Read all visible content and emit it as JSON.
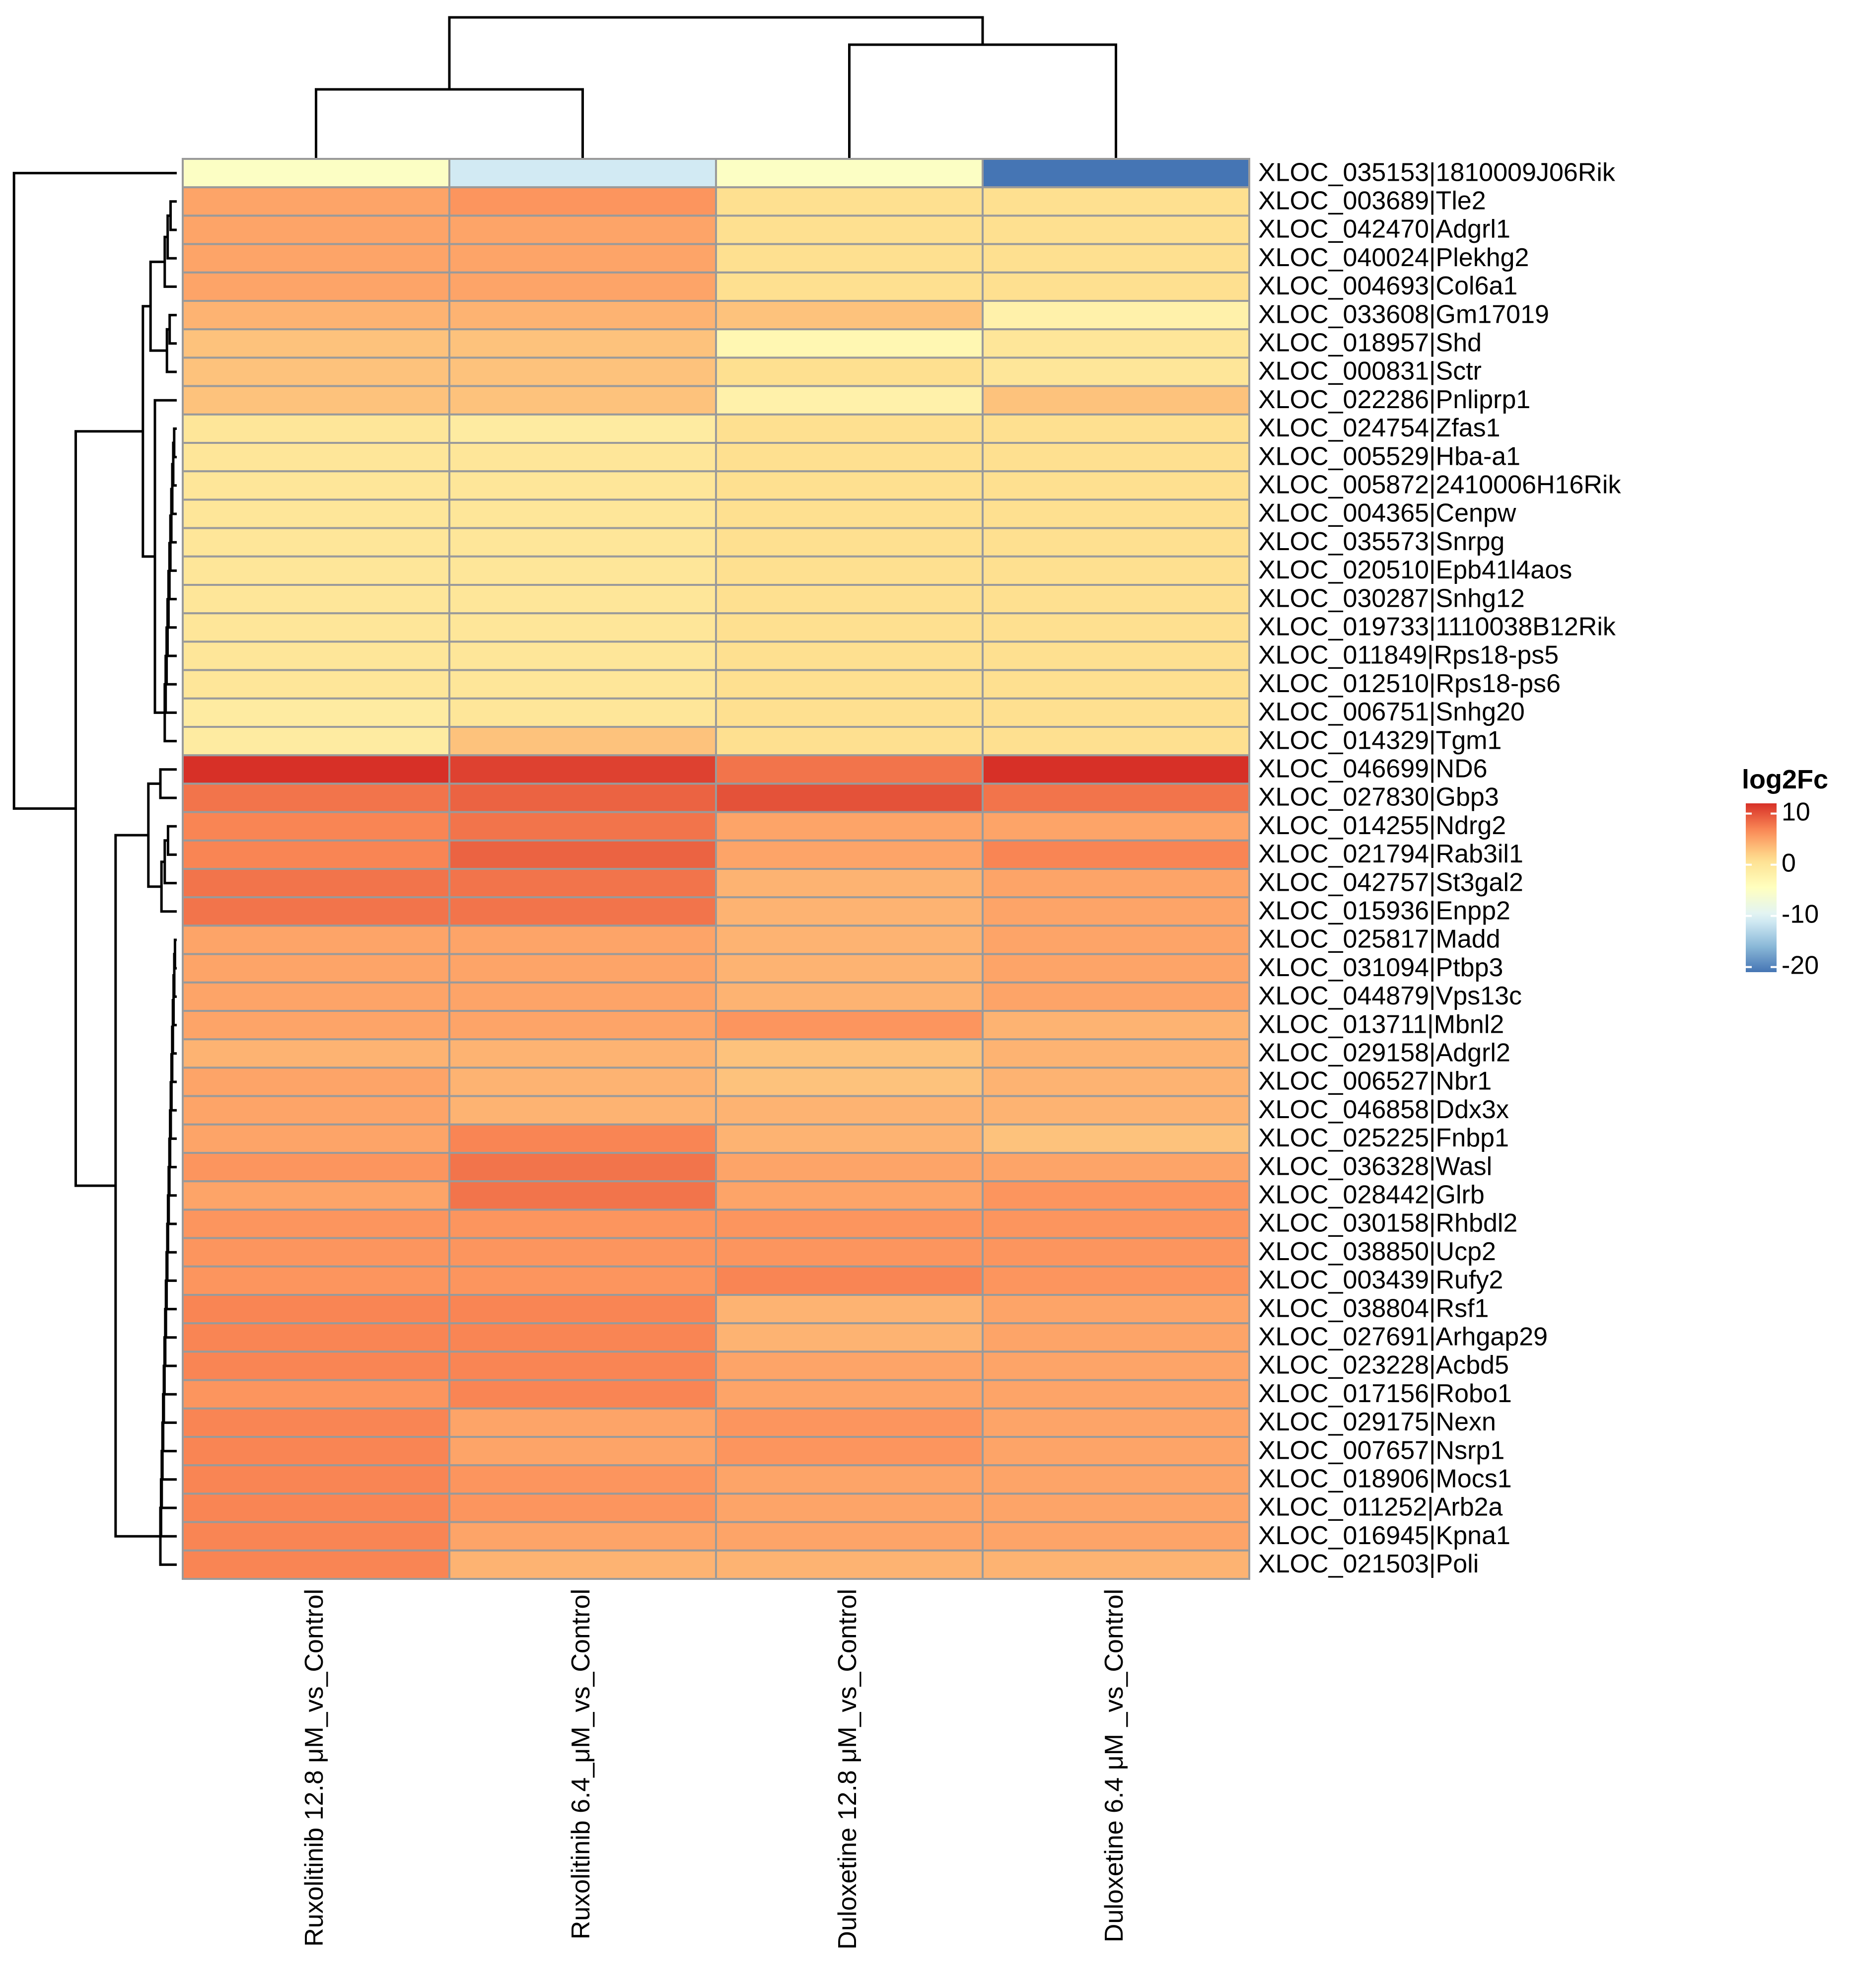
{
  "chart_data": {
    "type": "heatmap",
    "title": "",
    "columns": [
      "Ruxolitinib 12.8 μM_vs_Control",
      "Ruxolitinib 6.4_μM_vs_Control",
      "Duloxetine 12.8 μM_vs_Control",
      "Duloxetine 6.4 μM _vs_Control"
    ],
    "rows": [
      "XLOC_035153|1810009J06Rik",
      "XLOC_003689|Tle2",
      "XLOC_042470|Adgrl1",
      "XLOC_040024|Plekhg2",
      "XLOC_004693|Col6a1",
      "XLOC_033608|Gm17019",
      "XLOC_018957|Shd",
      "XLOC_000831|Sctr",
      "XLOC_022286|Pnliprp1",
      "XLOC_024754|Zfas1",
      "XLOC_005529|Hba-a1",
      "XLOC_005872|2410006H16Rik",
      "XLOC_004365|Cenpw",
      "XLOC_035573|Snrpg",
      "XLOC_020510|Epb41l4aos",
      "XLOC_030287|Snhg12",
      "XLOC_019733|1110038B12Rik",
      "XLOC_011849|Rps18-ps5",
      "XLOC_012510|Rps18-ps6",
      "XLOC_006751|Snhg20",
      "XLOC_014329|Tgm1",
      "XLOC_046699|ND6",
      "XLOC_027830|Gbp3",
      "XLOC_014255|Ndrg2",
      "XLOC_021794|Rab3il1",
      "XLOC_042757|St3gal2",
      "XLOC_015936|Enpp2",
      "XLOC_025817|Madd",
      "XLOC_031094|Ptbp3",
      "XLOC_044879|Vps13c",
      "XLOC_013711|Mbnl2",
      "XLOC_029158|Adgrl2",
      "XLOC_006527|Nbr1",
      "XLOC_046858|Ddx3x",
      "XLOC_025225|Fnbp1",
      "XLOC_036328|Wasl",
      "XLOC_028442|Glrb",
      "XLOC_030158|Rhbdl2",
      "XLOC_038850|Ucp2",
      "XLOC_003439|Rufy2",
      "XLOC_038804|Rsf1",
      "XLOC_027691|Arhgap29",
      "XLOC_023228|Acbd5",
      "XLOC_017156|Robo1",
      "XLOC_029175|Nexn",
      "XLOC_007657|Nsrp1",
      "XLOC_018906|Mocs1",
      "XLOC_011252|Arb2a",
      "XLOC_016945|Kpna1",
      "XLOC_021503|Poli"
    ],
    "values": [
      [
        -5,
        -11,
        -5,
        -21
      ],
      [
        5,
        6,
        1,
        1
      ],
      [
        5,
        5,
        1,
        1
      ],
      [
        5,
        5,
        1,
        1
      ],
      [
        5,
        5,
        1,
        1
      ],
      [
        4,
        4,
        3,
        -2
      ],
      [
        3,
        3,
        -3,
        0
      ],
      [
        3,
        3,
        1,
        0
      ],
      [
        3,
        3,
        -2,
        3
      ],
      [
        0,
        -1,
        1,
        1
      ],
      [
        0,
        0,
        1,
        1
      ],
      [
        0,
        0,
        1,
        1
      ],
      [
        0,
        0,
        1,
        1
      ],
      [
        0,
        0,
        1,
        1
      ],
      [
        0,
        0,
        1,
        1
      ],
      [
        0,
        0,
        1,
        1
      ],
      [
        0,
        0,
        1,
        1
      ],
      [
        0,
        0,
        1,
        1
      ],
      [
        0,
        0,
        1,
        1
      ],
      [
        -1,
        0,
        1,
        1
      ],
      [
        -1,
        3,
        1,
        1
      ],
      [
        12,
        11,
        8,
        12
      ],
      [
        8,
        9,
        10,
        8
      ],
      [
        7,
        8,
        5,
        5
      ],
      [
        7,
        9,
        5,
        7
      ],
      [
        8,
        8,
        4,
        5
      ],
      [
        8,
        8,
        4,
        5
      ],
      [
        5,
        5,
        4,
        5
      ],
      [
        5,
        5,
        4,
        5
      ],
      [
        5,
        5,
        4,
        5
      ],
      [
        5,
        5,
        6,
        4
      ],
      [
        4,
        4,
        3,
        4
      ],
      [
        5,
        4,
        3,
        4
      ],
      [
        5,
        4,
        4,
        4
      ],
      [
        5,
        7,
        4,
        3
      ],
      [
        6,
        8,
        5,
        5
      ],
      [
        5,
        8,
        5,
        6
      ],
      [
        6,
        6,
        6,
        6
      ],
      [
        6,
        6,
        6,
        6
      ],
      [
        6,
        6,
        7,
        6
      ],
      [
        7,
        7,
        4,
        5
      ],
      [
        7,
        7,
        4,
        5
      ],
      [
        7,
        7,
        5,
        5
      ],
      [
        6,
        7,
        5,
        5
      ],
      [
        7,
        5,
        6,
        5
      ],
      [
        7,
        5,
        6,
        5
      ],
      [
        7,
        6,
        5,
        5
      ],
      [
        7,
        6,
        5,
        5
      ],
      [
        7,
        5,
        5,
        5
      ],
      [
        7,
        4,
        4,
        4
      ]
    ],
    "legend": {
      "title": "log2Fc",
      "ticks": [
        10,
        0,
        -10,
        -20
      ],
      "range": [
        -21,
        12
      ],
      "placement": "right"
    },
    "palette": [
      "#4575b4",
      "#91bfdb",
      "#e0f3f8",
      "#ffffbf",
      "#fee090",
      "#fc8d59",
      "#d73027"
    ],
    "cell_border_color": "#9a9a9a",
    "dendrogram_color": "#000000"
  }
}
